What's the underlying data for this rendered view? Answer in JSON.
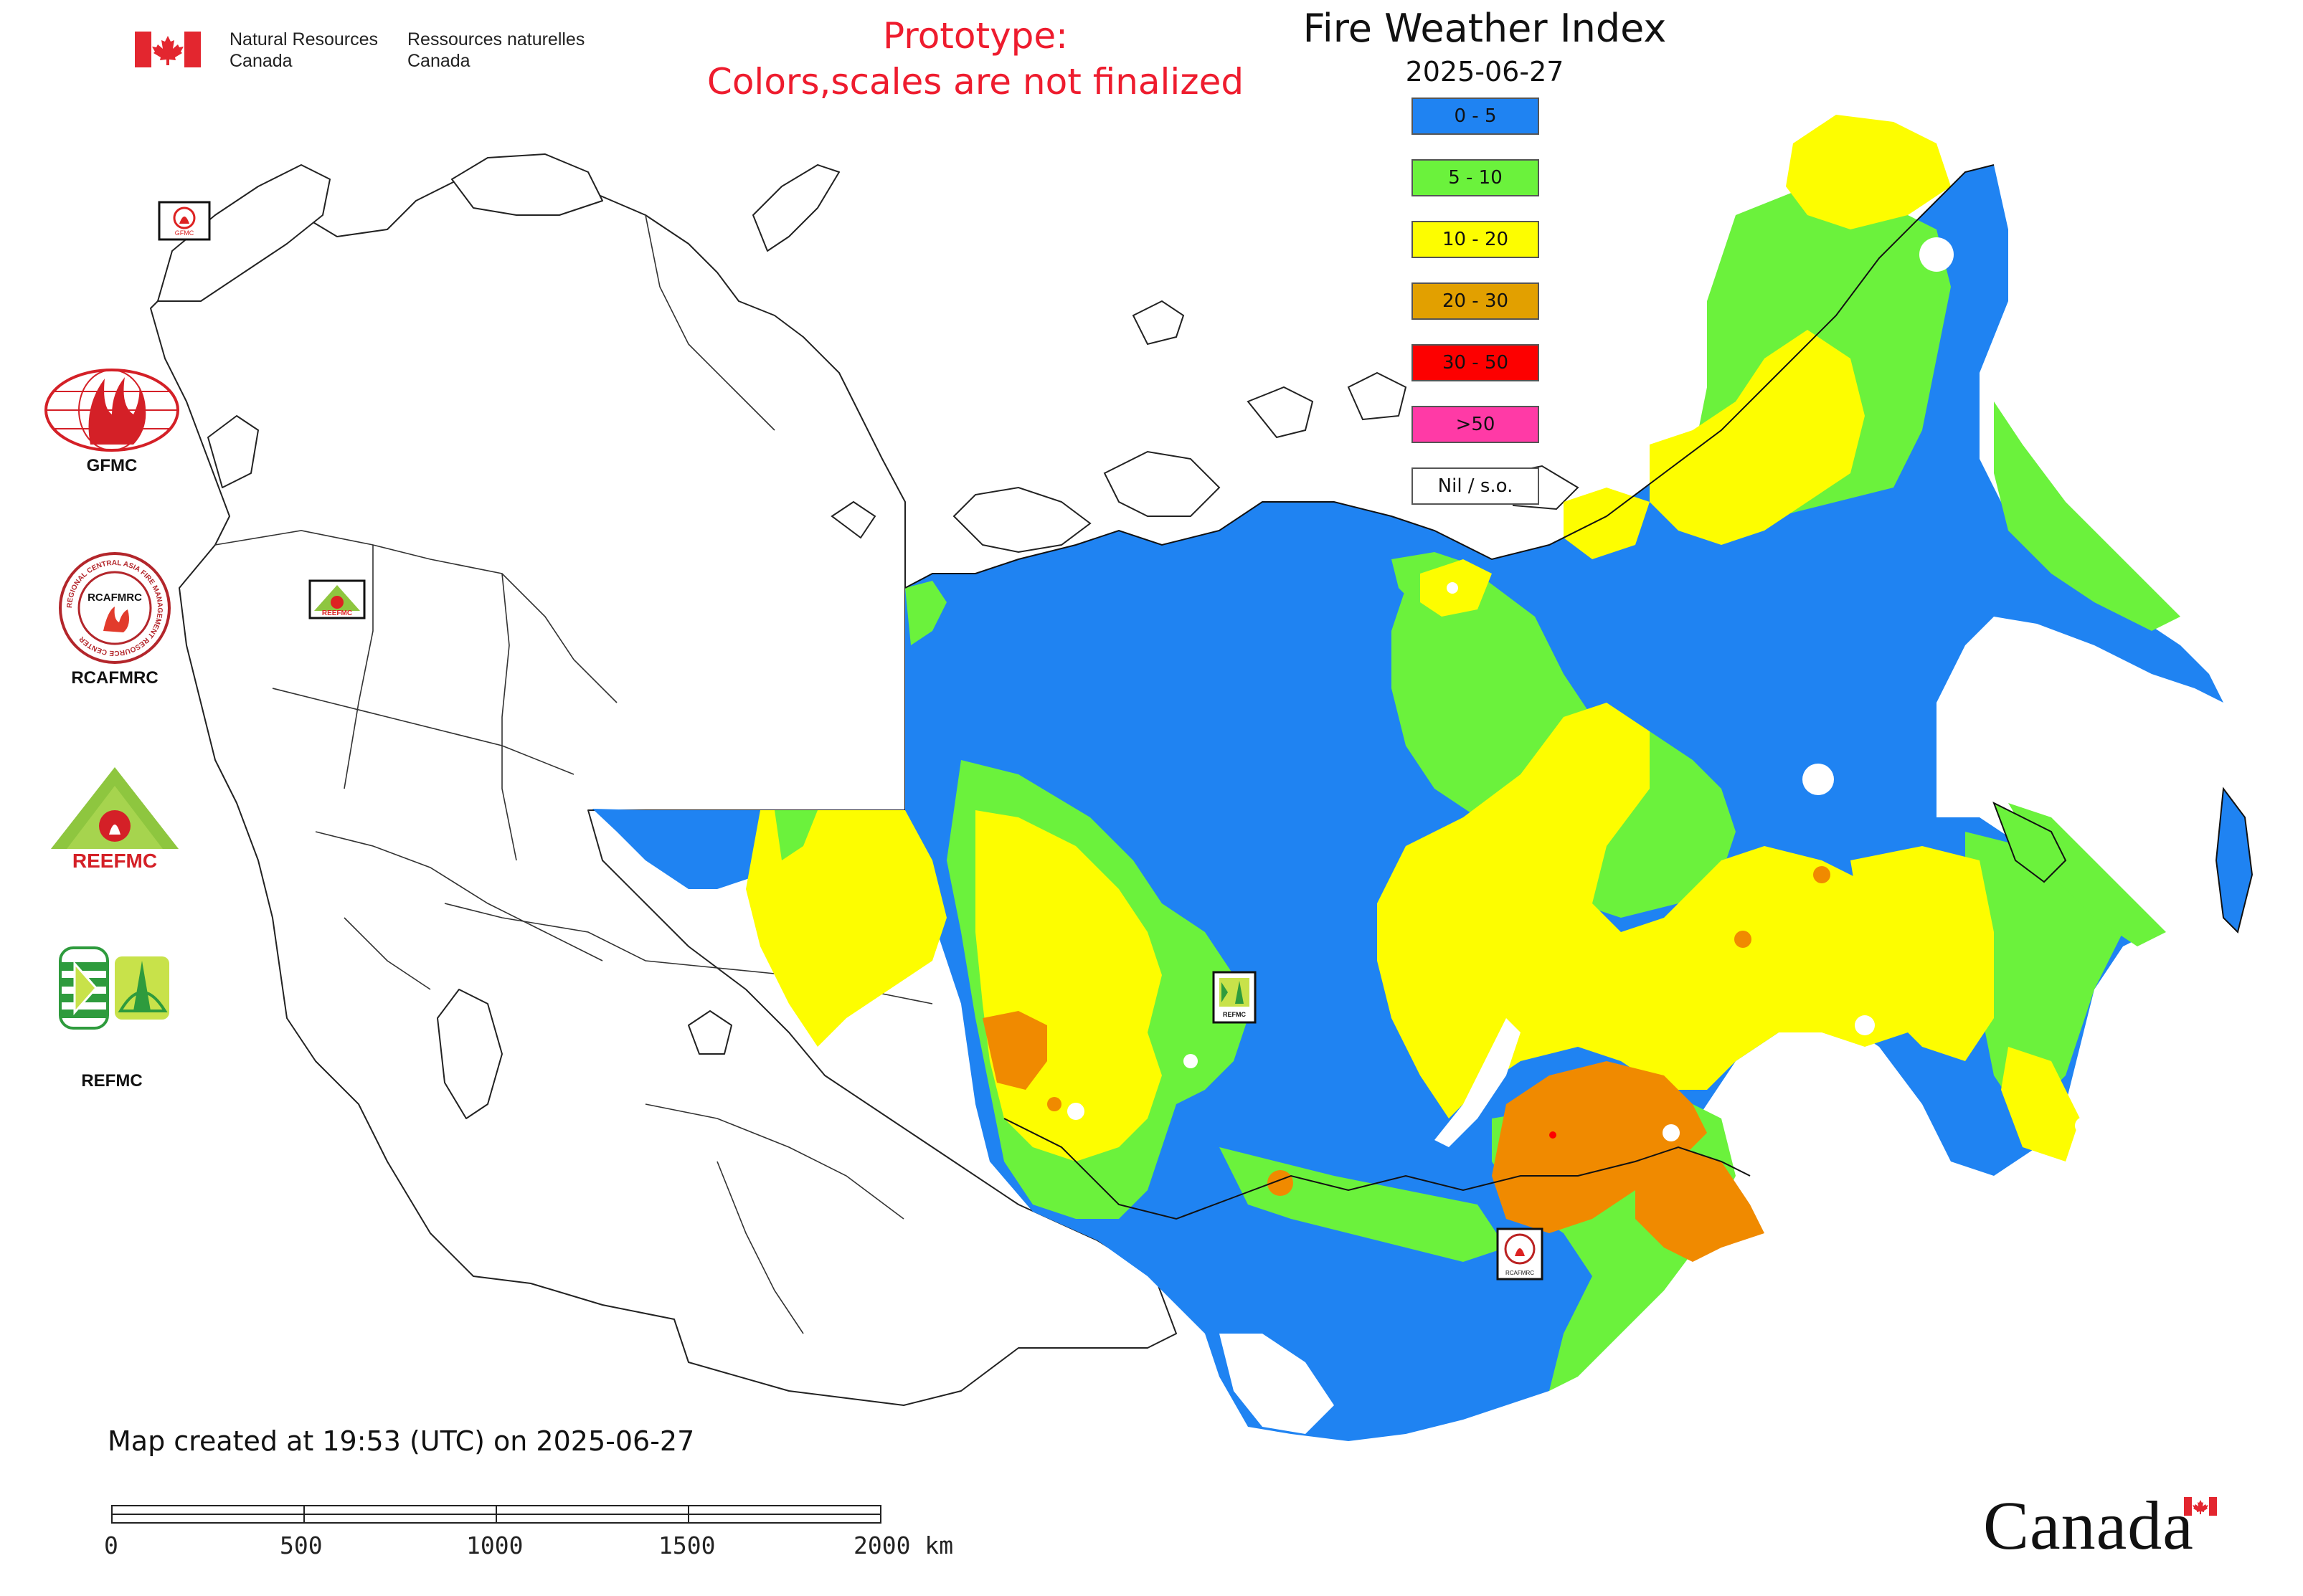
{
  "header": {
    "org_en_line1": "Natural Resources",
    "org_en_line2": "Canada",
    "org_fr_line1": "Ressources naturelles",
    "org_fr_line2": "Canada",
    "prototype_line1": "Prototype:",
    "prototype_line2": "Colors,scales are not finalized",
    "title": "Fire Weather Index",
    "date": "2025-06-27"
  },
  "legend": {
    "items": [
      {
        "label": "0 - 5",
        "color": "#1f83f2"
      },
      {
        "label": "5 - 10",
        "color": "#6bf23c"
      },
      {
        "label": "10 - 20",
        "color": "#fdfd00"
      },
      {
        "label": "20 - 30",
        "color": "#e2a000"
      },
      {
        "label": "30 - 50",
        "color": "#fd0000"
      },
      {
        "label": ">50",
        "color": "#ff3aa6"
      },
      {
        "label": "Nil / s.o.",
        "color": "#ffffff"
      }
    ]
  },
  "logos": {
    "gfmc": "GFMC",
    "rcafmrc": "RCAFMRC",
    "rcafmrc_ring_text": "REGIONAL CENTRAL ASIA FIRE MANAGEMENT RESOURCE CENTER",
    "reefmc": "REEFMC",
    "refmc": "REFMC"
  },
  "footer": {
    "created": "Map created at 19:53 (UTC) on 2025-06-27",
    "scale_labels": [
      "0",
      "500",
      "1000",
      "1500",
      "2000 km"
    ],
    "canada_wordmark": "Canada"
  },
  "colors": {
    "blue": "#1f83f2",
    "green": "#6bf23c",
    "yellow": "#fdfd00",
    "orange": "#f08a00",
    "red": "#fd0000",
    "outline": "#111111"
  }
}
